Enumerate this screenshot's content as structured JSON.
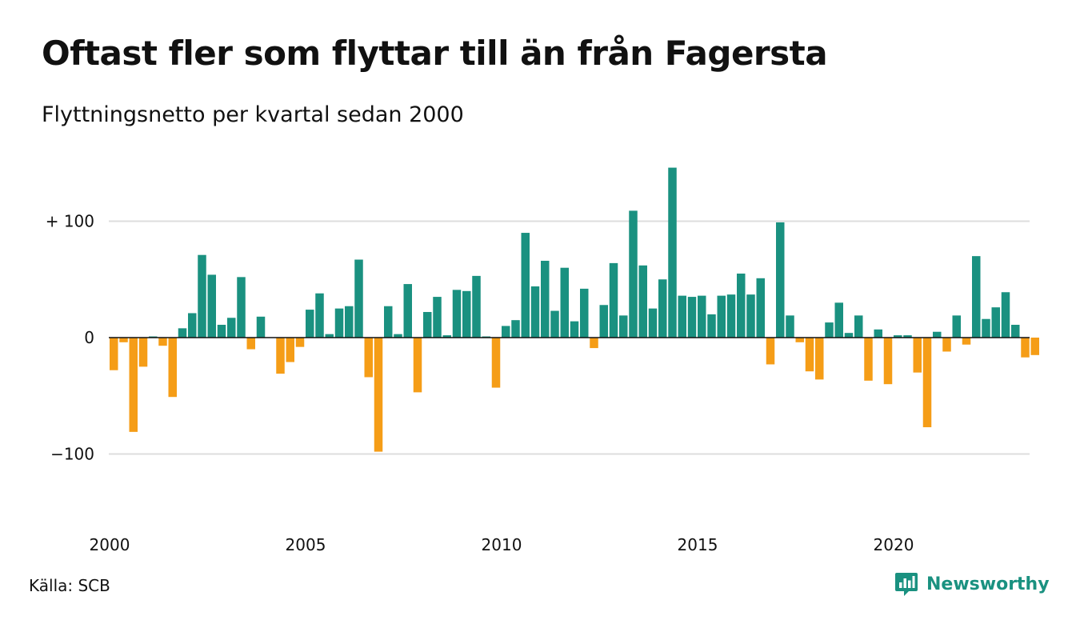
{
  "header": {
    "title": "Oftast fler som flyttar till än från Fagersta",
    "subtitle": "Flyttningsnetto per kvartal sedan 2000"
  },
  "footer": {
    "source": "Källa: SCB",
    "brand": "Newsworthy",
    "brand_icon": "newsworthy-logo-icon"
  },
  "colors": {
    "positive": "#1a9180",
    "negative": "#f59d17",
    "grid": "#dddddd",
    "zero_line": "#111111",
    "brand": "#1a9180"
  },
  "chart_data": {
    "type": "bar",
    "title": "Oftast fler som flyttar till än från Fagersta",
    "subtitle": "Flyttningsnetto per kvartal sedan 2000",
    "xlabel": "",
    "ylabel": "",
    "ylim": [
      -150,
      150
    ],
    "y_ticks": [
      {
        "value": 100,
        "label": "+ 100"
      },
      {
        "value": 0,
        "label": "0"
      },
      {
        "value": -100,
        "label": "−100"
      }
    ],
    "x_ticks": [
      {
        "value": 2000,
        "label": "2000"
      },
      {
        "value": 2005,
        "label": "2005"
      },
      {
        "value": 2010,
        "label": "2010"
      },
      {
        "value": 2015,
        "label": "2015"
      },
      {
        "value": 2020,
        "label": "2020"
      }
    ],
    "x_start": 2000,
    "grid": true,
    "legend": "none",
    "values": [
      -28,
      -4,
      -81,
      -25,
      1,
      -7,
      -51,
      8,
      21,
      71,
      54,
      11,
      17,
      52,
      -10,
      18,
      0,
      -31,
      -21,
      -8,
      24,
      38,
      3,
      25,
      27,
      67,
      -34,
      -98,
      27,
      3,
      46,
      -47,
      22,
      35,
      2,
      41,
      40,
      53,
      1,
      -43,
      10,
      15,
      90,
      44,
      66,
      23,
      60,
      14,
      42,
      -9,
      28,
      64,
      19,
      109,
      62,
      25,
      50,
      146,
      36,
      35,
      36,
      20,
      36,
      37,
      55,
      37,
      51,
      -23,
      99,
      19,
      -4,
      -29,
      -36,
      13,
      30,
      4,
      19,
      -37,
      7,
      -40,
      2,
      2,
      -30,
      -77,
      5,
      -12,
      19,
      -6,
      70,
      16,
      26,
      39,
      11,
      -17,
      -15
    ]
  }
}
